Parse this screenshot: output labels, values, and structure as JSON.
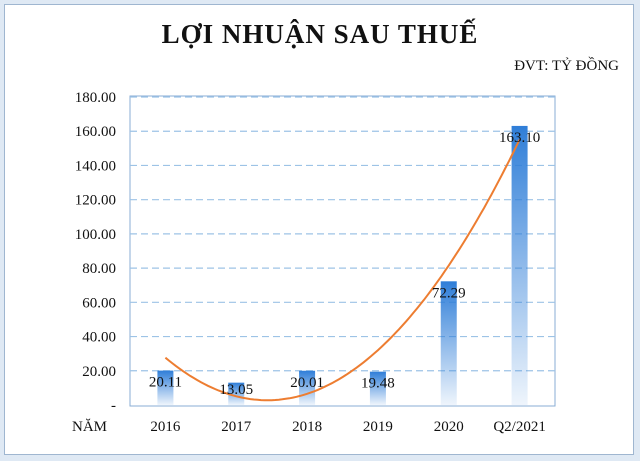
{
  "chart_data": {
    "type": "bar",
    "title": "LỢI NHUẬN SAU THUẾ",
    "unit_note": "ĐVT: TỶ ĐỒNG",
    "xlabel": "NĂM",
    "ylabel": "",
    "categories": [
      "2016",
      "2017",
      "2018",
      "2019",
      "2020",
      "Q2/2021"
    ],
    "values": [
      20.11,
      13.05,
      20.01,
      19.48,
      72.29,
      163.1
    ],
    "data_labels": [
      "20.11",
      "13.05",
      "20.01",
      "19.48",
      "72.29",
      "163.10"
    ],
    "ylim": [
      0,
      180
    ],
    "yticks": [
      0,
      20,
      40,
      60,
      80,
      100,
      120,
      140,
      160,
      180
    ],
    "ytick_labels": [
      "-",
      "20.00",
      "40.00",
      "60.00",
      "80.00",
      "100.00",
      "120.00",
      "140.00",
      "160.00",
      "180.00"
    ],
    "grid": true,
    "legend": "none",
    "trendline": "polynomial",
    "colors": {
      "bar": "#4a90d9",
      "trend": "#ed7d31",
      "grid": "#9dc3e6"
    }
  }
}
